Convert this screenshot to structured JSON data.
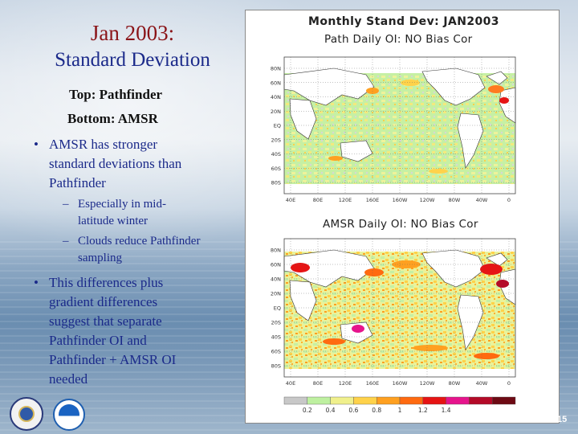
{
  "slide": {
    "title_line1": "Jan 2003:",
    "title_line2": "Standard Deviation",
    "label_top": "Top:  Pathfinder",
    "label_bottom": "Bottom: AMSR",
    "page_number": "15"
  },
  "bullets": [
    {
      "lines": [
        "AMSR has stronger",
        "standard deviations than",
        "Pathfinder"
      ],
      "subbullets": [
        {
          "lines": [
            "Especially in mid-",
            "latitude winter"
          ]
        },
        {
          "lines": [
            "Clouds reduce Pathfinder",
            "sampling"
          ]
        }
      ]
    },
    {
      "lines": [
        "This differences plus",
        "gradient differences",
        "suggest that separate",
        "Pathfinder OI and",
        "Pathfinder + AMSR OI",
        "needed"
      ],
      "subbullets": []
    }
  ],
  "figure": {
    "title": "Monthly Stand Dev: JAN2003",
    "top_map_title": "Path Daily OI: NO Bias Cor",
    "bottom_map_title": "AMSR Daily OI: NO Bias Cor",
    "lat_labels": [
      "80N",
      "60N",
      "40N",
      "20N",
      "EQ",
      "20S",
      "40S",
      "60S",
      "80S"
    ],
    "lon_labels": [
      "40E",
      "80E",
      "120E",
      "160E",
      "160W",
      "120W",
      "80W",
      "40W",
      "0"
    ],
    "colorbar": {
      "ticks": [
        "0.2",
        "0.4",
        "0.6",
        "0.8",
        "1",
        "1.2",
        "1.4"
      ],
      "colors": [
        "#c8c8c8",
        "#bef0a0",
        "#f0f08c",
        "#ffd24a",
        "#ffa020",
        "#ff6a10",
        "#e61414",
        "#e6148c",
        "#b40a28",
        "#6e0a14"
      ]
    }
  },
  "logos": [
    "department-of-commerce-seal",
    "noaa-logo"
  ]
}
